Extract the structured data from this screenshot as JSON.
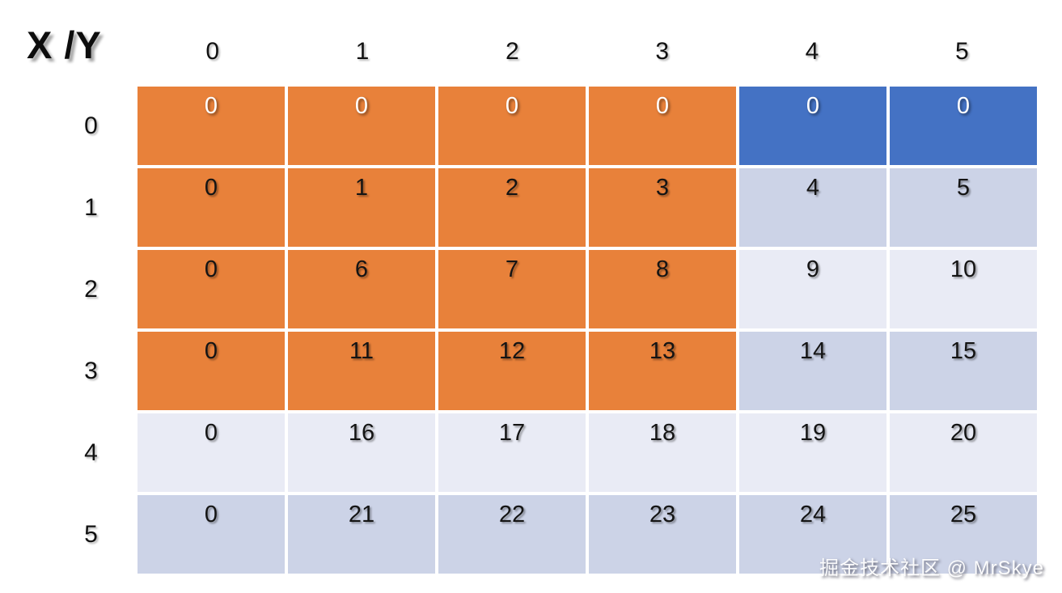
{
  "corner_label": "X /Y",
  "column_headers": [
    "0",
    "1",
    "2",
    "3",
    "4",
    "5"
  ],
  "row_headers": [
    "0",
    "1",
    "2",
    "3",
    "4",
    "5"
  ],
  "colors": {
    "orange": "#E8813A",
    "blue": "#4472C4",
    "band_dark": "#CCD3E7",
    "band_light": "#E9EBF5",
    "background": "#FFFFFF",
    "header_text": "#111111",
    "cell_text_dark": "#141414",
    "cell_text_light": "#FFFFFF"
  },
  "grid": {
    "rows": [
      {
        "cells": [
          {
            "v": "0",
            "bg": "orange",
            "fg": "white"
          },
          {
            "v": "0",
            "bg": "orange",
            "fg": "white"
          },
          {
            "v": "0",
            "bg": "orange",
            "fg": "white"
          },
          {
            "v": "0",
            "bg": "orange",
            "fg": "white"
          },
          {
            "v": "0",
            "bg": "blue",
            "fg": "white"
          },
          {
            "v": "0",
            "bg": "blue",
            "fg": "white"
          }
        ]
      },
      {
        "cells": [
          {
            "v": "0",
            "bg": "orange",
            "fg": "black"
          },
          {
            "v": "1",
            "bg": "orange",
            "fg": "black"
          },
          {
            "v": "2",
            "bg": "orange",
            "fg": "black"
          },
          {
            "v": "3",
            "bg": "orange",
            "fg": "black"
          },
          {
            "v": "4",
            "bg": "band_dark",
            "fg": "black"
          },
          {
            "v": "5",
            "bg": "band_dark",
            "fg": "black"
          }
        ]
      },
      {
        "cells": [
          {
            "v": "0",
            "bg": "orange",
            "fg": "black"
          },
          {
            "v": "6",
            "bg": "orange",
            "fg": "black"
          },
          {
            "v": "7",
            "bg": "orange",
            "fg": "black"
          },
          {
            "v": "8",
            "bg": "orange",
            "fg": "black"
          },
          {
            "v": "9",
            "bg": "band_light",
            "fg": "black"
          },
          {
            "v": "10",
            "bg": "band_light",
            "fg": "black"
          }
        ]
      },
      {
        "cells": [
          {
            "v": "0",
            "bg": "orange",
            "fg": "black"
          },
          {
            "v": "11",
            "bg": "orange",
            "fg": "black"
          },
          {
            "v": "12",
            "bg": "orange",
            "fg": "black"
          },
          {
            "v": "13",
            "bg": "orange",
            "fg": "black"
          },
          {
            "v": "14",
            "bg": "band_dark",
            "fg": "black"
          },
          {
            "v": "15",
            "bg": "band_dark",
            "fg": "black"
          }
        ]
      },
      {
        "cells": [
          {
            "v": "0",
            "bg": "band_light",
            "fg": "black"
          },
          {
            "v": "16",
            "bg": "band_light",
            "fg": "black"
          },
          {
            "v": "17",
            "bg": "band_light",
            "fg": "black"
          },
          {
            "v": "18",
            "bg": "band_light",
            "fg": "black"
          },
          {
            "v": "19",
            "bg": "band_light",
            "fg": "black"
          },
          {
            "v": "20",
            "bg": "band_light",
            "fg": "black"
          }
        ]
      },
      {
        "cells": [
          {
            "v": "0",
            "bg": "band_dark",
            "fg": "black"
          },
          {
            "v": "21",
            "bg": "band_dark",
            "fg": "black"
          },
          {
            "v": "22",
            "bg": "band_dark",
            "fg": "black"
          },
          {
            "v": "23",
            "bg": "band_dark",
            "fg": "black"
          },
          {
            "v": "24",
            "bg": "band_dark",
            "fg": "black"
          },
          {
            "v": "25",
            "bg": "band_dark",
            "fg": "black"
          }
        ]
      }
    ]
  },
  "watermark": "掘金技术社区 @ MrSkye"
}
